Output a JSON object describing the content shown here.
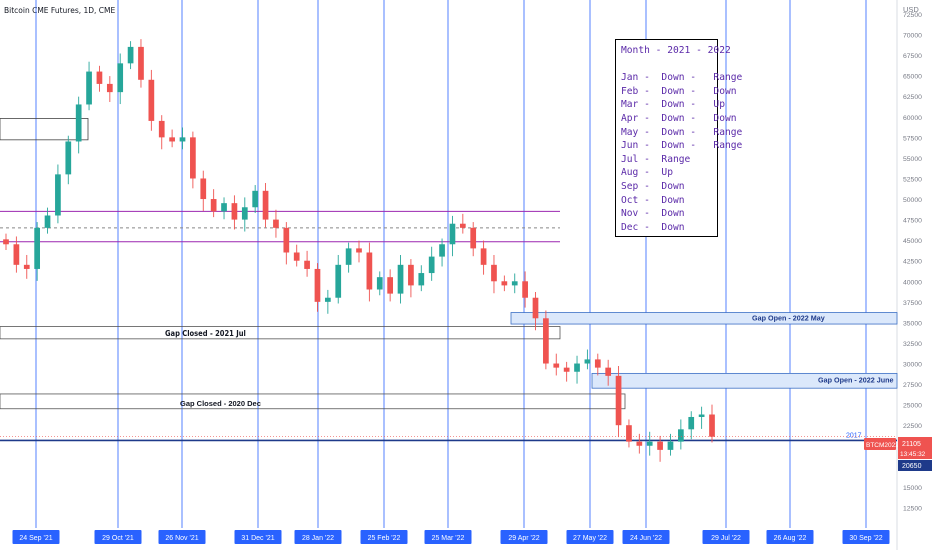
{
  "header": {
    "title": "Bitcoin CME Futures, 1D, CME"
  },
  "axis": {
    "currency": "USD"
  },
  "note_box": {
    "lines": [
      "Month - 2021 - 2022",
      "",
      "Jan -  Down -   Range",
      "Feb -  Down -   Down",
      "Mar -  Down -   Up",
      "Apr -  Down -   Down",
      "May -  Down -   Range",
      "Jun -  Down -   Range",
      "Jul -  Range",
      "Aug -  Up",
      "Sep -  Down",
      "Oct -  Down",
      "Nov -  Down",
      "Dec -  Down"
    ]
  },
  "labels": {
    "gap_closed_jul": "Gap Closed - 2021 Jul",
    "gap_closed_dec": "Gap Closed - 2020 Dec",
    "gap_open_may": "Gap Open - 2022 May",
    "gap_open_june": "Gap Open - 2022 June",
    "level_2017": "2017"
  },
  "price_tags": {
    "symbol": "BTCM2022",
    "last": "21105",
    "countdown": "13:45:32",
    "level": "20650"
  },
  "colors": {
    "up": "#26a69a",
    "down": "#ef5350",
    "vline": "#2962ff",
    "band": "#9c27b0",
    "level": "#1e3a8a",
    "gap_fill": "#dbe8fb"
  },
  "chart_data": {
    "type": "candlestick",
    "title": "Bitcoin CME Futures, 1D, CME",
    "ylim": [
      10000,
      72500
    ],
    "y_ticks": [
      72500,
      70000,
      67500,
      65000,
      62500,
      60000,
      57500,
      55000,
      52500,
      50000,
      47500,
      45000,
      42500,
      40000,
      37500,
      35000,
      32500,
      30000,
      27500,
      25000,
      22500,
      20000,
      17500,
      15000,
      12500
    ],
    "x_tick_labels": [
      "24 Sep '21",
      "29 Oct '21",
      "26 Nov '21",
      "31 Dec '21",
      "28 Jan '22",
      "25 Feb '22",
      "25 Mar '22",
      "29 Apr '22",
      "27 May '22",
      "24 Jun '22",
      "29 Jul '22",
      "26 Aug '22",
      "30 Sep '22"
    ],
    "series": [
      {
        "close": [
          44500,
          42000,
          41500,
          46500,
          48000,
          53000,
          57000,
          61500,
          65500,
          64000,
          63000,
          66500,
          68500,
          64500,
          59500,
          57500,
          57000,
          57500,
          52500,
          50000,
          48500,
          49500,
          47500,
          49000,
          51000,
          47500,
          46500,
          43500,
          42500,
          41500,
          37500,
          38000,
          42000,
          44000,
          43500,
          39000,
          40500,
          38500,
          42000,
          39500,
          41000,
          43000,
          44500,
          47000,
          46500,
          44000,
          42000,
          40000,
          39500,
          40000,
          38000,
          35500,
          30000,
          29500,
          29000,
          30000,
          30500,
          29500,
          28500,
          22500,
          20500,
          20000,
          20500,
          19500,
          20500,
          22000,
          23500,
          23800,
          21100
        ]
      }
    ],
    "horizontal_levels": [
      {
        "label": "Gap Closed - 2021 Jul",
        "value": 33000
      },
      {
        "label": "Gap Closed - 2020 Dec",
        "value": 24500
      },
      {
        "label": "2017",
        "value": 20650
      }
    ],
    "zones": [
      {
        "label": "Gap Open - 2022 May",
        "from": 34800,
        "to": 36200
      },
      {
        "label": "Gap Open - 2022 June",
        "from": 27000,
        "to": 28800
      }
    ],
    "bands": [
      48500,
      46500,
      44800
    ]
  }
}
